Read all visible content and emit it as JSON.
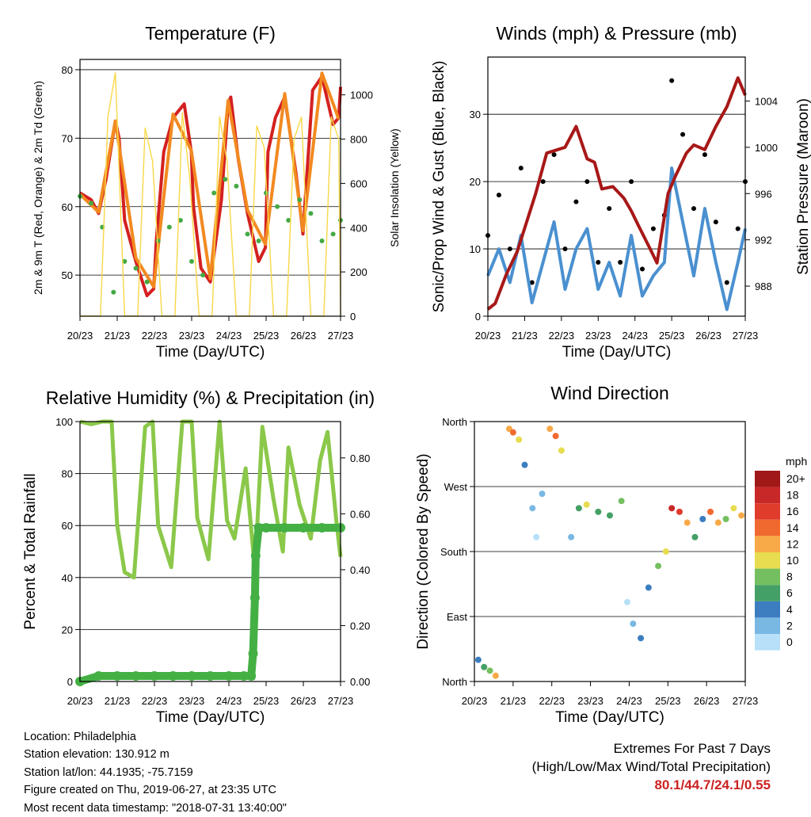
{
  "chart_data": [
    {
      "type": "line",
      "title": "Temperature (F)",
      "xlabel": "Time (Day/UTC)",
      "ylabel": "2m & 9m T (Red, Orange) & 2m Td (Green)",
      "ylabel_right": "Solar Insolation (Yellow)",
      "x_ticks": [
        "20/23",
        "21/23",
        "22/23",
        "23/23",
        "24/23",
        "25/23",
        "26/23",
        "27/23"
      ],
      "y_ticks": [
        50,
        60,
        70,
        80
      ],
      "ylim": [
        44,
        81.5
      ],
      "y2_ticks": [
        0,
        200,
        400,
        600,
        800,
        1000
      ],
      "y2lim": [
        0,
        1160
      ],
      "grid": "horizontal",
      "series": [
        {
          "color": "#d42020",
          "marker": "line",
          "x": [
            0,
            0.3,
            0.5,
            0.7,
            0.95,
            1.05,
            1.2,
            1.5,
            1.8,
            1.98,
            2.05,
            2.25,
            2.5,
            2.8,
            2.99,
            3.05,
            3.25,
            3.5,
            3.8,
            3.98,
            4.05,
            4.25,
            4.5,
            4.8,
            4.98,
            5.05,
            5.25,
            5.5,
            5.8,
            5.99,
            6.05,
            6.25,
            6.5,
            6.8,
            6.95,
            7.0
          ],
          "y": [
            62,
            61,
            59,
            64,
            72.5,
            70,
            58,
            52,
            47,
            48,
            55,
            68,
            73,
            75,
            68,
            60,
            51,
            49,
            61,
            75,
            76,
            67,
            59,
            52,
            54,
            68,
            73,
            76,
            65,
            56,
            61,
            77,
            79,
            72,
            73,
            77.5
          ]
        },
        {
          "color": "#f28a20",
          "marker": "line",
          "x": [
            0,
            0.5,
            0.95,
            1.5,
            1.98,
            2.5,
            2.99,
            3.5,
            3.98,
            4.5,
            4.98,
            5.5,
            5.99,
            6.5,
            6.95
          ],
          "y": [
            61.8,
            59.2,
            72.5,
            52.5,
            48.3,
            73.5,
            68.2,
            49.5,
            75.5,
            59.5,
            54.5,
            76.5,
            56.5,
            79.5,
            72.8
          ]
        },
        {
          "color": "#44aa44",
          "marker": "dot",
          "x": [
            0,
            0.3,
            0.6,
            0.9,
            1.2,
            1.5,
            1.8,
            2.1,
            2.4,
            2.7,
            3.0,
            3.3,
            3.6,
            3.9,
            4.2,
            4.5,
            4.8,
            5.0,
            5.3,
            5.6,
            5.9,
            6.2,
            6.5,
            6.8,
            7.0
          ],
          "y": [
            61.5,
            60.5,
            57,
            47.5,
            52,
            51,
            49,
            55,
            57,
            58,
            52,
            50,
            62,
            64,
            63,
            56,
            55,
            62,
            60,
            58,
            61,
            59,
            55,
            56,
            58
          ]
        },
        {
          "color": "#f8d848",
          "marker": "thin-line",
          "axis": "right",
          "x": [
            0,
            0.2,
            0.55,
            0.75,
            0.95,
            1.2,
            1.55,
            1.75,
            1.95,
            2.2,
            2.55,
            2.75,
            2.95,
            3.2,
            3.55,
            3.75,
            3.95,
            4.2,
            4.55,
            4.75,
            4.95,
            5.2,
            5.55,
            5.75,
            5.95,
            6.2,
            6.55,
            6.75,
            6.95,
            7.0
          ],
          "y": [
            0,
            0,
            0,
            900,
            1100,
            0,
            0,
            850,
            700,
            0,
            0,
            920,
            620,
            0,
            0,
            900,
            700,
            0,
            0,
            860,
            760,
            0,
            0,
            800,
            900,
            0,
            0,
            900,
            800,
            0
          ]
        }
      ]
    },
    {
      "type": "scatter",
      "title": "Winds (mph) & Pressure (mb)",
      "xlabel": "Time (Day/UTC)",
      "ylabel": "Sonic/Prop Wind & Gust (Blue, Black)",
      "ylabel_right": "Station Pressure (Maroon)",
      "x_ticks": [
        "20/23",
        "21/23",
        "22/23",
        "23/23",
        "24/23",
        "25/23",
        "26/23",
        "27/23"
      ],
      "y_ticks": [
        0,
        10,
        20,
        30
      ],
      "ylim": [
        0,
        38.5
      ],
      "y2_ticks": [
        988,
        992,
        996,
        1000,
        1004
      ],
      "y2lim": [
        985.4,
        1007.8
      ],
      "grid": "horizontal",
      "series": [
        {
          "color": "#000000",
          "marker": "dot",
          "x": [
            0,
            0.3,
            0.6,
            0.9,
            1.2,
            1.5,
            1.8,
            2.1,
            2.4,
            2.7,
            3.0,
            3.3,
            3.6,
            3.9,
            4.2,
            4.5,
            4.8,
            5.0,
            5.3,
            5.6,
            5.9,
            6.2,
            6.5,
            6.8,
            7.0
          ],
          "y": [
            12,
            18,
            10,
            22,
            5,
            20,
            24,
            10,
            17,
            20,
            8,
            16,
            8,
            20,
            7,
            13,
            15,
            35,
            27,
            16,
            24,
            14,
            5,
            13,
            20
          ]
        },
        {
          "color": "#4a90d0",
          "marker": "line",
          "x": [
            0,
            0.3,
            0.6,
            0.9,
            1.2,
            1.5,
            1.8,
            2.1,
            2.4,
            2.7,
            3.0,
            3.3,
            3.6,
            3.9,
            4.2,
            4.5,
            4.8,
            5.0,
            5.3,
            5.6,
            5.9,
            6.2,
            6.5,
            6.8,
            7.0
          ],
          "y": [
            6,
            10,
            5,
            12,
            2,
            8,
            14,
            4,
            10,
            13,
            4,
            8,
            3,
            12,
            3,
            6,
            8,
            22,
            14,
            6,
            16,
            8,
            1,
            8,
            13
          ]
        },
        {
          "color": "#a81818",
          "marker": "line",
          "axis": "right",
          "x": [
            0,
            0.2,
            0.5,
            0.8,
            1.0,
            1.3,
            1.6,
            1.9,
            2.1,
            2.4,
            2.7,
            2.9,
            3.1,
            3.4,
            3.7,
            3.9,
            4.1,
            4.4,
            4.6,
            4.9,
            5.1,
            5.4,
            5.6,
            5.9,
            6.2,
            6.5,
            6.8,
            7.0
          ],
          "y": [
            986,
            986.5,
            989,
            991,
            993,
            996,
            999.5,
            999.8,
            1000,
            1001.8,
            999,
            998.7,
            996.4,
            996.6,
            995.6,
            994.5,
            993.2,
            991.3,
            990,
            996,
            997.5,
            999.5,
            1000.2,
            999.8,
            1001.8,
            1003.5,
            1006,
            1004.5
          ]
        }
      ]
    },
    {
      "type": "line",
      "title": "Relative Humidity (%) & Precipitation (in)",
      "xlabel": "Time (Day/UTC)",
      "ylabel": "Percent & Total Rainfall",
      "x_ticks": [
        "20/23",
        "21/23",
        "22/23",
        "23/23",
        "24/23",
        "25/23",
        "26/23",
        "27/23"
      ],
      "y_ticks": [
        0,
        20,
        40,
        60,
        80,
        100
      ],
      "ylim": [
        0,
        100
      ],
      "y2_ticks": [
        "0.00",
        "0.20",
        "0.40",
        "0.60",
        "0.80"
      ],
      "y2lim": [
        0,
        0.93
      ],
      "grid": "horizontal",
      "series": [
        {
          "color": "#8bc84a",
          "marker": "line",
          "x": [
            0,
            0.3,
            0.6,
            0.85,
            1.0,
            1.2,
            1.45,
            1.75,
            1.95,
            2.1,
            2.45,
            2.75,
            3.0,
            3.15,
            3.45,
            3.75,
            3.95,
            4.15,
            4.45,
            4.7,
            4.9,
            5.2,
            5.45,
            5.6,
            5.9,
            6.2,
            6.45,
            6.65,
            6.9,
            7.0
          ],
          "y": [
            100,
            99,
            100,
            100,
            60,
            42,
            40,
            98,
            100,
            60,
            44,
            100,
            100,
            63,
            47,
            100,
            62,
            55,
            82,
            43,
            98,
            70,
            50,
            90,
            68,
            55,
            85,
            96,
            60,
            48
          ]
        },
        {
          "color": "#44b044",
          "marker": "dot",
          "axis": "right",
          "x": [
            0,
            0.5,
            1.0,
            1.5,
            2.0,
            2.5,
            3.0,
            3.5,
            4.0,
            4.4,
            4.6,
            4.65,
            4.7,
            4.72,
            4.8,
            5.0,
            5.5,
            6.0,
            6.5,
            7.0
          ],
          "y": [
            0,
            0.02,
            0.02,
            0.02,
            0.02,
            0.02,
            0.02,
            0.02,
            0.02,
            0.02,
            0.02,
            0.1,
            0.3,
            0.45,
            0.55,
            0.55,
            0.55,
            0.55,
            0.55,
            0.55
          ]
        }
      ]
    },
    {
      "type": "scatter",
      "title": "Wind Direction",
      "xlabel": "Time (Day/UTC)",
      "ylabel": "Direction (Colored By Speed)",
      "x_ticks": [
        "20/23",
        "21/23",
        "22/23",
        "23/23",
        "24/23",
        "25/23",
        "26/23",
        "27/23"
      ],
      "y_ticks": [
        "North",
        "East",
        "South",
        "West",
        "North"
      ],
      "ylim": [
        0,
        360
      ],
      "grid": "horizontal",
      "legend": {
        "title": "mph",
        "position": "right",
        "labels": [
          "20+",
          "18",
          "16",
          "14",
          "12",
          "10",
          "8",
          "6",
          "4",
          "2",
          "0"
        ],
        "colors": [
          "#a01818",
          "#c82828",
          "#e03c2c",
          "#f06a30",
          "#f8aa48",
          "#e8dc50",
          "#74c060",
          "#44a066",
          "#3c7ec0",
          "#7ab8e4",
          "#b8e0f8"
        ]
      },
      "points": [
        {
          "x": 0.1,
          "y": 30,
          "s": 4
        },
        {
          "x": 0.25,
          "y": 20,
          "s": 6
        },
        {
          "x": 0.4,
          "y": 15,
          "s": 8
        },
        {
          "x": 0.55,
          "y": 8,
          "s": 12
        },
        {
          "x": 0.9,
          "y": 350,
          "s": 12
        },
        {
          "x": 1.0,
          "y": 345,
          "s": 14
        },
        {
          "x": 1.15,
          "y": 335,
          "s": 10
        },
        {
          "x": 1.3,
          "y": 300,
          "s": 4
        },
        {
          "x": 1.5,
          "y": 240,
          "s": 2
        },
        {
          "x": 1.6,
          "y": 200,
          "s": 0
        },
        {
          "x": 1.75,
          "y": 260,
          "s": 2
        },
        {
          "x": 1.95,
          "y": 350,
          "s": 12
        },
        {
          "x": 2.1,
          "y": 340,
          "s": 14
        },
        {
          "x": 2.25,
          "y": 320,
          "s": 10
        },
        {
          "x": 2.5,
          "y": 200,
          "s": 2
        },
        {
          "x": 2.7,
          "y": 240,
          "s": 6
        },
        {
          "x": 2.9,
          "y": 245,
          "s": 10
        },
        {
          "x": 3.2,
          "y": 235,
          "s": 6
        },
        {
          "x": 3.5,
          "y": 230,
          "s": 6
        },
        {
          "x": 3.8,
          "y": 250,
          "s": 8
        },
        {
          "x": 3.95,
          "y": 110,
          "s": 0
        },
        {
          "x": 4.1,
          "y": 80,
          "s": 2
        },
        {
          "x": 4.3,
          "y": 60,
          "s": 4
        },
        {
          "x": 4.5,
          "y": 130,
          "s": 4
        },
        {
          "x": 4.75,
          "y": 160,
          "s": 8
        },
        {
          "x": 4.95,
          "y": 180,
          "s": 10
        },
        {
          "x": 5.1,
          "y": 240,
          "s": 18
        },
        {
          "x": 5.3,
          "y": 235,
          "s": 16
        },
        {
          "x": 5.5,
          "y": 220,
          "s": 12
        },
        {
          "x": 5.7,
          "y": 200,
          "s": 6
        },
        {
          "x": 5.9,
          "y": 225,
          "s": 4
        },
        {
          "x": 6.1,
          "y": 235,
          "s": 14
        },
        {
          "x": 6.3,
          "y": 220,
          "s": 12
        },
        {
          "x": 6.5,
          "y": 225,
          "s": 8
        },
        {
          "x": 6.7,
          "y": 240,
          "s": 10
        },
        {
          "x": 6.9,
          "y": 230,
          "s": 12
        }
      ]
    }
  ],
  "info": {
    "location": "Location: Philadelphia",
    "elevation": "Station elevation: 130.912 m",
    "latlon": "Station lat/lon: 44.1935; -75.7159",
    "created": "Figure created on Thu, 2019-06-27, at 23:35 UTC",
    "recent": "Most recent data timestamp: \"2018-07-31 13:40:00\""
  },
  "extremes": {
    "heading": "Extremes For Past 7 Days",
    "subheading": "(High/Low/Max Wind/Total Precipitation)",
    "values": "80.1/44.7/24.1/0.55"
  }
}
